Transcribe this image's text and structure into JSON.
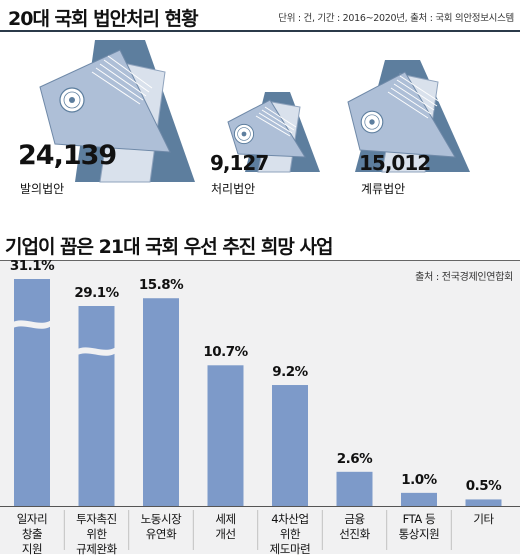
{
  "section1": {
    "title": "20대 국회 법안처리 현황",
    "source": "단위 : 건, 기간 : 2016~2020년, 출처 : 국회 의안정보시스템",
    "stats": [
      {
        "value": "24,139",
        "label": "발의법안"
      },
      {
        "value": "9,127",
        "label": "처리법안"
      },
      {
        "value": "15,012",
        "label": "계류법안"
      }
    ]
  },
  "section2": {
    "title": "기업이 꼽은 21대 국회 우선 추진 희망 사업",
    "source": "출처 : 전국경제인연합회"
  },
  "chart_data": {
    "type": "bar",
    "unit": "%",
    "categories": [
      "일자리\n창출\n지원",
      "투자촉진\n위한\n규제완화",
      "노동시장\n유연화",
      "세제\n개선",
      "4차산업\n위한\n제도마련",
      "금융\n선진화",
      "FTA 등\n통상지원",
      "기타"
    ],
    "values": [
      31.1,
      29.1,
      15.8,
      10.7,
      9.2,
      2.6,
      1.0,
      0.5
    ],
    "value_labels": [
      "31.1%",
      "29.1%",
      "15.8%",
      "10.7%",
      "9.2%",
      "2.6%",
      "1.0%",
      "0.5%"
    ],
    "axis_break": true,
    "colors": {
      "bar": "#7d9ac9",
      "folder": "#5d7e9e",
      "paper": "#aebfd7"
    }
  }
}
